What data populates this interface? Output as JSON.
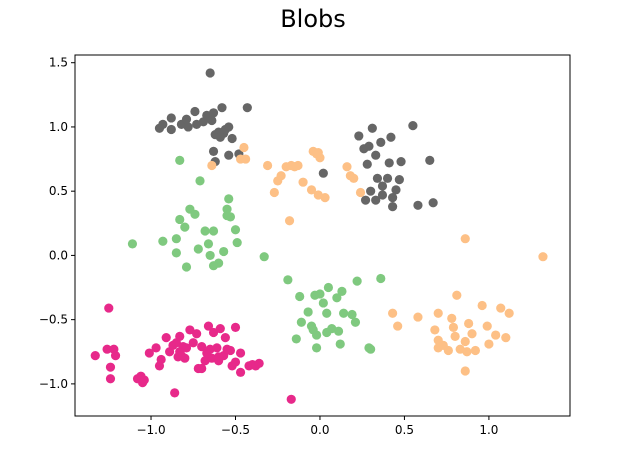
{
  "chart_data": {
    "type": "scatter",
    "title": "Blobs",
    "xlabel": "",
    "ylabel": "",
    "xlim": [
      -1.45,
      1.48
    ],
    "ylim": [
      -1.25,
      1.56
    ],
    "grid": false,
    "legend": "none",
    "xticks": [
      {
        "value": -1.0,
        "label": "−1.0"
      },
      {
        "value": -0.5,
        "label": "−0.5"
      },
      {
        "value": 0.0,
        "label": "0.0"
      },
      {
        "value": 0.5,
        "label": "0.5"
      },
      {
        "value": 1.0,
        "label": "1.0"
      }
    ],
    "yticks": [
      {
        "value": 1.5,
        "label": "1.5"
      },
      {
        "value": 1.0,
        "label": "1.0"
      },
      {
        "value": 0.5,
        "label": "0.5"
      },
      {
        "value": 0.0,
        "label": "0.0"
      },
      {
        "value": -0.5,
        "label": "−0.5"
      },
      {
        "value": -1.0,
        "label": "−1.0"
      }
    ],
    "series": [
      {
        "name": "cluster-gray",
        "color": "#666666",
        "points": [
          [
            -0.65,
            1.42
          ],
          [
            -0.95,
            0.99
          ],
          [
            -0.93,
            1.02
          ],
          [
            -0.88,
            0.98
          ],
          [
            -0.82,
            1.02
          ],
          [
            -0.79,
            1.06
          ],
          [
            -0.78,
            1.0
          ],
          [
            -0.74,
            1.12
          ],
          [
            -0.73,
            1.02
          ],
          [
            -0.69,
            1.04
          ],
          [
            -0.67,
            1.09
          ],
          [
            -0.64,
            1.05
          ],
          [
            -0.63,
            1.11
          ],
          [
            -0.62,
            0.94
          ],
          [
            -0.6,
            0.96
          ],
          [
            -0.59,
            0.92
          ],
          [
            -0.58,
            1.15
          ],
          [
            -0.57,
            0.95
          ],
          [
            -0.56,
            0.98
          ],
          [
            -0.54,
            1.0
          ],
          [
            -0.52,
            0.91
          ],
          [
            -0.48,
            0.79
          ],
          [
            -0.43,
            1.15
          ],
          [
            -0.63,
            0.81
          ],
          [
            -0.62,
            0.73
          ],
          [
            -0.54,
            0.78
          ],
          [
            -0.88,
            1.07
          ],
          [
            0.23,
            0.93
          ],
          [
            0.26,
            0.83
          ],
          [
            0.28,
            0.71
          ],
          [
            0.29,
            0.85
          ],
          [
            0.31,
            0.99
          ],
          [
            0.33,
            0.78
          ],
          [
            0.34,
            0.6
          ],
          [
            0.36,
            0.88
          ],
          [
            0.37,
            0.54
          ],
          [
            0.4,
            0.6
          ],
          [
            0.41,
            0.72
          ],
          [
            0.42,
            0.92
          ],
          [
            0.45,
            0.51
          ],
          [
            0.47,
            0.59
          ],
          [
            0.37,
            0.47
          ],
          [
            0.33,
            0.43
          ],
          [
            0.3,
            0.5
          ],
          [
            0.43,
            0.45
          ],
          [
            0.48,
            0.73
          ],
          [
            0.55,
            1.01
          ],
          [
            0.58,
            0.39
          ],
          [
            0.65,
            0.74
          ],
          [
            0.67,
            0.41
          ],
          [
            0.27,
            0.43
          ],
          [
            0.02,
            0.64
          ],
          [
            0.43,
            0.38
          ]
        ]
      },
      {
        "name": "cluster-orange",
        "color": "#FDC086",
        "points": [
          [
            -0.64,
            0.7
          ],
          [
            -0.45,
            0.84
          ],
          [
            -0.47,
            0.75
          ],
          [
            -0.44,
            0.75
          ],
          [
            -0.31,
            0.7
          ],
          [
            -0.27,
            0.49
          ],
          [
            -0.25,
            0.58
          ],
          [
            -0.23,
            0.62
          ],
          [
            -0.2,
            0.69
          ],
          [
            -0.17,
            0.7
          ],
          [
            -0.15,
            0.69
          ],
          [
            -0.13,
            0.7
          ],
          [
            -0.04,
            0.81
          ],
          [
            -0.02,
            0.79
          ],
          [
            0.0,
            0.76
          ],
          [
            -0.1,
            0.57
          ],
          [
            -0.05,
            0.51
          ],
          [
            -0.01,
            0.47
          ],
          [
            0.03,
            0.45
          ],
          [
            -0.18,
            0.27
          ],
          [
            0.16,
            0.69
          ],
          [
            0.18,
            0.62
          ],
          [
            0.2,
            0.6
          ],
          [
            0.24,
            0.49
          ],
          [
            -0.01,
            0.8
          ],
          [
            0.43,
            -0.45
          ],
          [
            0.46,
            -0.55
          ],
          [
            0.58,
            -0.48
          ],
          [
            0.68,
            -0.58
          ],
          [
            0.7,
            -0.45
          ],
          [
            0.7,
            -0.66
          ],
          [
            0.73,
            -0.7
          ],
          [
            0.78,
            -0.49
          ],
          [
            0.79,
            -0.56
          ],
          [
            0.8,
            -0.63
          ],
          [
            0.81,
            -0.31
          ],
          [
            0.83,
            -0.73
          ],
          [
            0.86,
            -0.67
          ],
          [
            0.87,
            -0.75
          ],
          [
            0.88,
            -0.53
          ],
          [
            0.9,
            -0.61
          ],
          [
            0.92,
            -0.74
          ],
          [
            0.96,
            -0.39
          ],
          [
            0.99,
            -0.55
          ],
          [
            1.0,
            -0.69
          ],
          [
            1.04,
            -0.62
          ],
          [
            1.07,
            -0.41
          ],
          [
            1.1,
            -0.64
          ],
          [
            1.12,
            -0.45
          ],
          [
            1.32,
            -0.01
          ],
          [
            0.86,
            0.13
          ],
          [
            0.86,
            -0.9
          ],
          [
            0.7,
            -0.72
          ],
          [
            0.76,
            -0.74
          ]
        ]
      },
      {
        "name": "cluster-green",
        "color": "#7FC97F",
        "points": [
          [
            -0.83,
            0.74
          ],
          [
            -0.71,
            0.58
          ],
          [
            -1.11,
            0.09
          ],
          [
            -0.93,
            0.11
          ],
          [
            -0.83,
            0.28
          ],
          [
            -0.8,
            0.22
          ],
          [
            -0.77,
            0.36
          ],
          [
            -0.74,
            0.32
          ],
          [
            -0.72,
            0.05
          ],
          [
            -0.68,
            0.19
          ],
          [
            -0.66,
            0.09
          ],
          [
            -0.65,
            0.0
          ],
          [
            -0.63,
            0.19
          ],
          [
            -0.6,
            -0.06
          ],
          [
            -0.57,
            0.03
          ],
          [
            -0.55,
            0.36
          ],
          [
            -0.54,
            0.44
          ],
          [
            -0.53,
            0.3
          ],
          [
            -0.5,
            0.2
          ],
          [
            -0.49,
            0.1
          ],
          [
            -0.33,
            -0.01
          ],
          [
            -0.85,
            0.13
          ],
          [
            -0.85,
            0.02
          ],
          [
            -0.79,
            -0.09
          ],
          [
            -0.63,
            -0.08
          ],
          [
            -0.55,
            0.31
          ],
          [
            -0.19,
            -0.19
          ],
          [
            -0.12,
            -0.32
          ],
          [
            -0.11,
            -0.52
          ],
          [
            -0.07,
            -0.44
          ],
          [
            -0.05,
            -0.55
          ],
          [
            -0.03,
            -0.31
          ],
          [
            0.0,
            -0.3
          ],
          [
            0.02,
            -0.37
          ],
          [
            0.04,
            -0.45
          ],
          [
            0.04,
            -0.6
          ],
          [
            0.05,
            -0.25
          ],
          [
            0.07,
            -0.57
          ],
          [
            0.1,
            -0.33
          ],
          [
            0.11,
            -0.59
          ],
          [
            0.13,
            -0.28
          ],
          [
            0.14,
            -0.45
          ],
          [
            0.19,
            -0.46
          ],
          [
            0.21,
            -0.52
          ],
          [
            0.22,
            -0.2
          ],
          [
            0.29,
            -0.72
          ],
          [
            0.3,
            -0.73
          ],
          [
            0.36,
            -0.18
          ],
          [
            0.12,
            -0.69
          ],
          [
            -0.14,
            -0.65
          ],
          [
            -0.02,
            -0.62
          ],
          [
            -0.04,
            -0.58
          ],
          [
            -0.02,
            -0.72
          ]
        ]
      },
      {
        "name": "cluster-magenta",
        "color": "#E7298A",
        "points": [
          [
            -1.33,
            -0.78
          ],
          [
            -1.26,
            -0.73
          ],
          [
            -1.25,
            -0.41
          ],
          [
            -1.24,
            -0.87
          ],
          [
            -1.24,
            -0.96
          ],
          [
            -1.22,
            -0.73
          ],
          [
            -1.21,
            -0.78
          ],
          [
            -1.08,
            -0.96
          ],
          [
            -1.06,
            -0.94
          ],
          [
            -1.05,
            -0.99
          ],
          [
            -1.04,
            -0.97
          ],
          [
            -1.01,
            -0.76
          ],
          [
            -0.97,
            -0.72
          ],
          [
            -0.95,
            -0.86
          ],
          [
            -0.94,
            -0.81
          ],
          [
            -0.91,
            -0.64
          ],
          [
            -0.89,
            -0.75
          ],
          [
            -0.87,
            -0.7
          ],
          [
            -0.85,
            -0.68
          ],
          [
            -0.84,
            -0.79
          ],
          [
            -0.83,
            -0.75
          ],
          [
            -0.83,
            -0.63
          ],
          [
            -0.81,
            -0.71
          ],
          [
            -0.8,
            -0.8
          ],
          [
            -0.79,
            -0.72
          ],
          [
            -0.77,
            -0.58
          ],
          [
            -0.75,
            -0.68
          ],
          [
            -0.73,
            -0.61
          ],
          [
            -0.72,
            -0.88
          ],
          [
            -0.7,
            -0.71
          ],
          [
            -0.7,
            -0.88
          ],
          [
            -0.68,
            -0.82
          ],
          [
            -0.66,
            -0.55
          ],
          [
            -0.65,
            -0.73
          ],
          [
            -0.64,
            -0.8
          ],
          [
            -0.63,
            -0.6
          ],
          [
            -0.61,
            -0.72
          ],
          [
            -0.6,
            -0.82
          ],
          [
            -0.59,
            -0.57
          ],
          [
            -0.57,
            -0.78
          ],
          [
            -0.56,
            -0.64
          ],
          [
            -0.55,
            -0.73
          ],
          [
            -0.53,
            -0.74
          ],
          [
            -0.52,
            -0.86
          ],
          [
            -0.5,
            -0.56
          ],
          [
            -0.5,
            -0.83
          ],
          [
            -0.47,
            -0.76
          ],
          [
            -0.47,
            -0.91
          ],
          [
            -0.42,
            -0.86
          ],
          [
            -0.4,
            -0.85
          ],
          [
            -0.38,
            -0.86
          ],
          [
            -0.36,
            -0.84
          ],
          [
            -0.86,
            -1.07
          ],
          [
            -0.17,
            -1.12
          ],
          [
            -0.6,
            -0.79
          ],
          [
            -0.82,
            -0.78
          ],
          [
            -0.67,
            -0.76
          ]
        ]
      }
    ]
  }
}
